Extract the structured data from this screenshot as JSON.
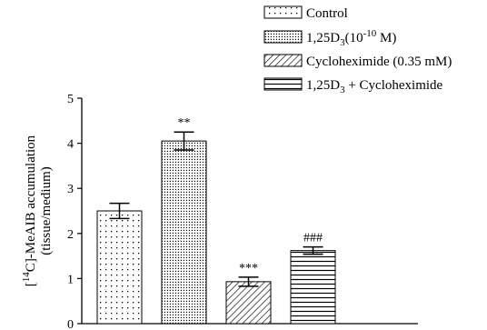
{
  "chart_data": {
    "type": "bar",
    "categories": [
      "Control",
      "1,25D3 (10^-10 M)",
      "Cycloheximide (0.35 mM)",
      "1,25D3 + Cycloheximide"
    ],
    "values": [
      2.5,
      4.05,
      0.93,
      1.62
    ],
    "errors": [
      0.17,
      0.2,
      0.1,
      0.08
    ],
    "significance": [
      "",
      "**",
      "***",
      "###"
    ],
    "patterns": [
      "dots",
      "dense-dots",
      "diagonal",
      "horizontal"
    ],
    "ylabel_line1_pre": "[",
    "ylabel_line1_sup": "14",
    "ylabel_line1_post": "C]-MeAIB accumulation",
    "ylabel_line2": "(tissue/medium)",
    "ylim": [
      0,
      5
    ],
    "yticks": [
      "0",
      "1",
      "2",
      "3",
      "4",
      "5"
    ],
    "legend": [
      {
        "pattern": "dots",
        "pre": "Control",
        "sub": "",
        "mid": "",
        "sup": "",
        "post": ""
      },
      {
        "pattern": "dense-dots",
        "pre": "1,25D",
        "sub": "3",
        "mid": "(10",
        "sup": "-10",
        "post": " M)"
      },
      {
        "pattern": "diagonal",
        "pre": "Cycloheximide (0.35 mM)",
        "sub": "",
        "mid": "",
        "sup": "",
        "post": ""
      },
      {
        "pattern": "horizontal",
        "pre": "1,25D",
        "sub": "3",
        "mid": " + Cycloheximide",
        "sup": "",
        "post": ""
      }
    ],
    "legend_position": "top-right",
    "grid": false
  }
}
